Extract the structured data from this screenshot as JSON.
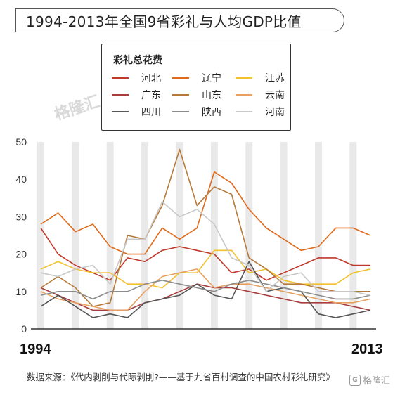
{
  "title": "1994-2013年全国9省彩礼与人均GDP比值",
  "legend_title": "彩礼总花费",
  "watermark": "格隆汇",
  "start_year_label": "1994",
  "end_year_label": "2013",
  "source_text": "数据来源：《代内剥削与代际剥削?——基于九省百村调查的中国农村彩礼研究》",
  "brand": "格隆汇",
  "chart_data": {
    "type": "line",
    "title": "1994-2013年全国9省彩礼与人均GDP比值",
    "x": [
      1994,
      1995,
      1996,
      1997,
      1998,
      1999,
      2000,
      2001,
      2002,
      2003,
      2004,
      2005,
      2006,
      2007,
      2008,
      2009,
      2010,
      2011,
      2012,
      2013
    ],
    "ylim": [
      0,
      50
    ],
    "yticks": [
      0,
      10,
      20,
      30,
      40,
      50
    ],
    "grid": false,
    "legend": "top-center",
    "series": [
      {
        "name": "河北",
        "color": "#c0392b",
        "values": [
          27,
          20,
          17,
          15,
          13,
          19,
          18,
          21,
          22,
          21,
          20,
          15,
          16,
          13,
          15,
          17,
          19,
          19,
          17,
          17
        ]
      },
      {
        "name": "辽宁",
        "color": "#e06a1b",
        "values": [
          28,
          31,
          26,
          28,
          22,
          20,
          20,
          27,
          24,
          27,
          42,
          39,
          32,
          27,
          24,
          21,
          22,
          27,
          27,
          25
        ]
      },
      {
        "name": "江苏",
        "color": "#f2c12e",
        "values": [
          16,
          18,
          16,
          15,
          15,
          12,
          12,
          11,
          15,
          15,
          21,
          21,
          15,
          16,
          13,
          12,
          12,
          12,
          15,
          16
        ]
      },
      {
        "name": "广东",
        "color": "#a83c3c",
        "values": [
          11,
          9,
          7,
          5,
          5,
          5,
          7,
          8,
          10,
          12,
          11,
          11,
          10,
          9,
          8,
          7,
          7,
          7,
          6,
          5
        ]
      },
      {
        "name": "山东",
        "color": "#b57a3a",
        "values": [
          11,
          14,
          11,
          6,
          7,
          25,
          24,
          33,
          48,
          33,
          38,
          36,
          19,
          16,
          12,
          12,
          11,
          10,
          10,
          10
        ]
      },
      {
        "name": "云南",
        "color": "#e8a060",
        "values": [
          10,
          8,
          7,
          6,
          5,
          5,
          10,
          14,
          15,
          16,
          11,
          12,
          12,
          11,
          10,
          9,
          8,
          7,
          7,
          8
        ]
      },
      {
        "name": "四川",
        "color": "#555555",
        "values": [
          6,
          9,
          6,
          3,
          4,
          3,
          7,
          8,
          9,
          12,
          9,
          8,
          18,
          10,
          11,
          10,
          4,
          3,
          4,
          5
        ]
      },
      {
        "name": "陕西",
        "color": "#8c8c8c",
        "values": [
          9,
          10,
          10,
          8,
          10,
          10,
          12,
          13,
          12,
          11,
          10,
          12,
          13,
          12,
          11,
          10,
          9,
          8,
          8,
          9
        ]
      },
      {
        "name": "河南",
        "color": "#c8c8c8",
        "values": [
          15,
          14,
          16,
          17,
          12,
          24,
          24,
          34,
          30,
          32,
          28,
          19,
          17,
          10,
          14,
          15,
          10,
          10,
          10,
          9
        ]
      }
    ]
  }
}
